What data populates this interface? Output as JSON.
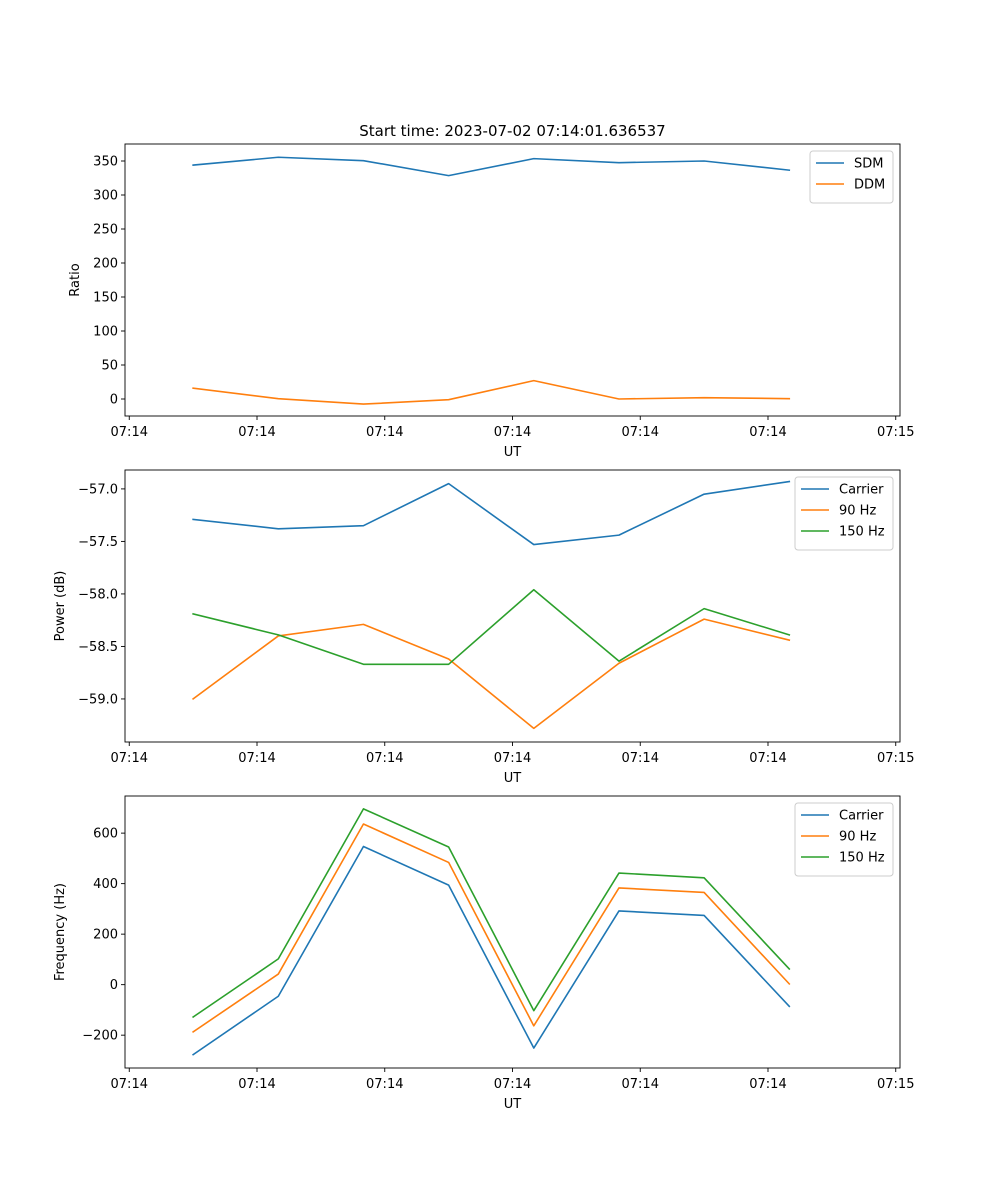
{
  "figure": {
    "title": "Start time: 2023-07-02 07:14:01.636537",
    "colors": {
      "blue": "#1f77b4",
      "orange": "#ff7f0e",
      "green": "#2ca02c"
    }
  },
  "chart_data": [
    {
      "type": "line",
      "title": "Start time: 2023-07-02 07:14:01.636537",
      "xlabel": "UT",
      "ylabel": "Ratio",
      "x": [
        0.75,
        1.75,
        2.75,
        3.75,
        4.75,
        5.75,
        6.75,
        7.75
      ],
      "xlim": [
        -0.05,
        9.05
      ],
      "xticks": [
        0,
        1.5,
        3,
        4.5,
        6,
        7.5,
        9
      ],
      "xtick_labels": [
        "07:14",
        "07:14",
        "07:14",
        "07:14",
        "07:14",
        "07:14",
        "07:15"
      ],
      "ylim": [
        -25,
        375
      ],
      "yticks": [
        0,
        50,
        100,
        150,
        200,
        250,
        300,
        350
      ],
      "ytick_labels": [
        "0",
        "50",
        "100",
        "150",
        "200",
        "250",
        "300",
        "350"
      ],
      "legend": "top-right",
      "series": [
        {
          "name": "SDM",
          "color": "#1f77b4",
          "values": [
            344,
            355.5,
            350.5,
            328.5,
            353.5,
            347.5,
            350,
            336.5
          ]
        },
        {
          "name": "DDM",
          "color": "#ff7f0e",
          "values": [
            16,
            0.5,
            -7.5,
            -1,
            27,
            0,
            2,
            0.5
          ]
        }
      ]
    },
    {
      "type": "line",
      "title": "",
      "xlabel": "UT",
      "ylabel": "Power (dB)",
      "x": [
        0.75,
        1.75,
        2.75,
        3.75,
        4.75,
        5.75,
        6.75,
        7.75
      ],
      "xlim": [
        -0.05,
        9.05
      ],
      "xticks": [
        0,
        1.5,
        3,
        4.5,
        6,
        7.5,
        9
      ],
      "xtick_labels": [
        "07:14",
        "07:14",
        "07:14",
        "07:14",
        "07:14",
        "07:14",
        "07:15"
      ],
      "ylim": [
        -59.41,
        -56.82
      ],
      "yticks": [
        -59.0,
        -58.5,
        -58.0,
        -57.5,
        -57.0
      ],
      "ytick_labels": [
        "−59.0",
        "−58.5",
        "−58.0",
        "−57.5",
        "−57.0"
      ],
      "legend": "top-right",
      "series": [
        {
          "name": "Carrier",
          "color": "#1f77b4",
          "values": [
            -57.29,
            -57.38,
            -57.35,
            -56.95,
            -57.53,
            -57.44,
            -57.05,
            -56.93
          ]
        },
        {
          "name": "90 Hz",
          "color": "#ff7f0e",
          "values": [
            -59.0,
            -58.4,
            -58.29,
            -58.62,
            -59.28,
            -58.66,
            -58.24,
            -58.44
          ]
        },
        {
          "name": "150 Hz",
          "color": "#2ca02c",
          "values": [
            -58.19,
            -58.39,
            -58.67,
            -58.67,
            -57.96,
            -58.64,
            -58.14,
            -58.39
          ]
        }
      ]
    },
    {
      "type": "line",
      "title": "",
      "xlabel": "UT",
      "ylabel": "Frequency (Hz)",
      "x": [
        0.75,
        1.75,
        2.75,
        3.75,
        4.75,
        5.75,
        6.75,
        7.75
      ],
      "xlim": [
        -0.05,
        9.05
      ],
      "xticks": [
        0,
        1.5,
        3,
        4.5,
        6,
        7.5,
        9
      ],
      "xtick_labels": [
        "07:14",
        "07:14",
        "07:14",
        "07:14",
        "07:14",
        "07:14",
        "07:15"
      ],
      "ylim": [
        -330,
        747
      ],
      "yticks": [
        -200,
        0,
        200,
        400,
        600
      ],
      "ytick_labels": [
        "−200",
        "0",
        "200",
        "400",
        "600"
      ],
      "legend": "top-right",
      "series": [
        {
          "name": "Carrier",
          "color": "#1f77b4",
          "values": [
            -277,
            -46,
            547,
            394,
            -251,
            292,
            274,
            -86
          ]
        },
        {
          "name": "90 Hz",
          "color": "#ff7f0e",
          "values": [
            -187,
            42,
            636,
            484,
            -163,
            383,
            365,
            3
          ]
        },
        {
          "name": "150 Hz",
          "color": "#2ca02c",
          "values": [
            -128,
            102,
            696,
            545,
            -103,
            442,
            423,
            62
          ]
        }
      ]
    }
  ]
}
